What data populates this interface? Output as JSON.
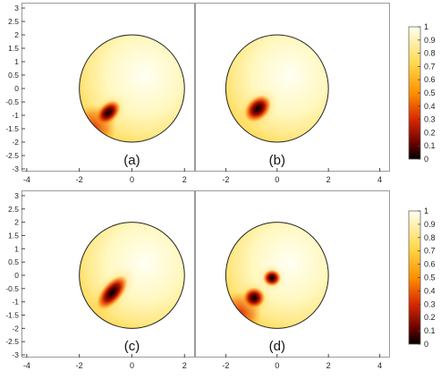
{
  "chart_data": [
    {
      "type": "heatmap",
      "label": "(a)",
      "xlabel": "",
      "ylabel": "",
      "x_ticks": [
        "-4",
        "-2",
        "0",
        "2"
      ],
      "y_ticks": [
        "3",
        "2.5",
        "2",
        "1.5",
        "1",
        "0.5",
        "0",
        "-0.5",
        "-1",
        "-1.5",
        "-2",
        "-2.5",
        "-3"
      ],
      "xlim": [
        -4.2,
        2.4
      ],
      "ylim": [
        -3.1,
        3.2
      ],
      "domain": {
        "shape": "disk",
        "center": [
          0,
          0
        ],
        "radius": 2
      },
      "blobs": [
        {
          "x": -0.9,
          "y": -0.9,
          "rx": 0.35,
          "ry": 0.22,
          "angle_deg": 45
        }
      ],
      "edge_dark": "lower-left",
      "grid": false
    },
    {
      "type": "heatmap",
      "label": "(b)",
      "xlabel": "",
      "ylabel": "",
      "x_ticks": [
        "-2",
        "0",
        "2",
        "4"
      ],
      "xlim": [
        -3.2,
        4.4
      ],
      "ylim": [
        -3.1,
        3.2
      ],
      "domain": {
        "shape": "disk",
        "center": [
          0,
          0
        ],
        "radius": 2
      },
      "blobs": [
        {
          "x": -0.75,
          "y": -0.75,
          "rx": 0.38,
          "ry": 0.26,
          "angle_deg": 45
        }
      ],
      "edge_dark": "",
      "grid": false
    },
    {
      "type": "heatmap",
      "label": "(c)",
      "xlabel": "",
      "ylabel": "",
      "x_ticks": [
        "-4",
        "-2",
        "0",
        "2"
      ],
      "y_ticks": [
        "3",
        "2.5",
        "2",
        "1.5",
        "1",
        "0.5",
        "0",
        "-0.5",
        "-1",
        "-1.5",
        "-2",
        "-2.5",
        "-3"
      ],
      "xlim": [
        -4.2,
        2.4
      ],
      "ylim": [
        -3.1,
        3.2
      ],
      "domain": {
        "shape": "disk",
        "center": [
          0,
          0
        ],
        "radius": 2
      },
      "blobs": [
        {
          "x": -0.75,
          "y": -0.65,
          "rx": 0.5,
          "ry": 0.24,
          "angle_deg": 50
        }
      ],
      "edge_dark": "",
      "grid": false
    },
    {
      "type": "heatmap",
      "label": "(d)",
      "xlabel": "",
      "ylabel": "",
      "x_ticks": [
        "-2",
        "0",
        "2",
        "4"
      ],
      "xlim": [
        -3.2,
        4.4
      ],
      "ylim": [
        -3.1,
        3.2
      ],
      "domain": {
        "shape": "disk",
        "center": [
          0,
          0
        ],
        "radius": 2
      },
      "blobs": [
        {
          "x": -0.9,
          "y": -0.85,
          "rx": 0.27,
          "ry": 0.25,
          "angle_deg": 0
        },
        {
          "x": -0.2,
          "y": -0.1,
          "rx": 0.22,
          "ry": 0.2,
          "angle_deg": 0
        }
      ],
      "edge_dark": "lower-left",
      "grid": false
    }
  ],
  "colorbar": {
    "ticks": [
      "1",
      "0.9",
      "0.8",
      "0.7",
      "0.6",
      "0.5",
      "0.4",
      "0.3",
      "0.2",
      "0.1",
      "0"
    ],
    "range": [
      0,
      1
    ],
    "colors": [
      "#000000",
      "#7a0000",
      "#e63a00",
      "#ff9a00",
      "#ffe066",
      "#fffff0"
    ]
  }
}
